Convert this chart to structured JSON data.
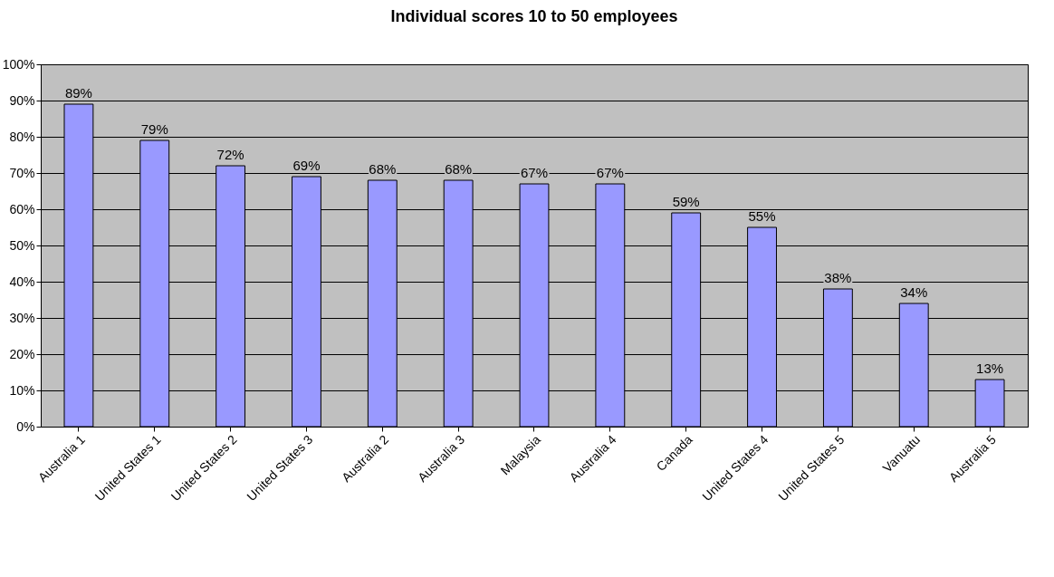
{
  "chart_data": {
    "type": "bar",
    "title": "Individual scores 10 to 50 employees",
    "categories": [
      "Australia 1",
      "United States 1",
      "United States 2",
      "United States 3",
      "Australia 2",
      "Australia 3",
      "Malaysia",
      "Australia 4",
      "Canada",
      "United States 4",
      "United States 5",
      "Vanuatu",
      "Australia 5"
    ],
    "values": [
      89,
      79,
      72,
      69,
      68,
      68,
      67,
      67,
      59,
      55,
      38,
      34,
      13
    ],
    "value_labels": [
      "89%",
      "79%",
      "72%",
      "69%",
      "68%",
      "68%",
      "67%",
      "67%",
      "59%",
      "55%",
      "38%",
      "34%",
      "13%"
    ],
    "color": "#9999ff",
    "ylim": [
      0,
      100
    ],
    "yticks": [
      {
        "value": 0,
        "label": "0%"
      },
      {
        "value": 10,
        "label": "10%"
      },
      {
        "value": 20,
        "label": "20%"
      },
      {
        "value": 30,
        "label": "30%"
      },
      {
        "value": 40,
        "label": "40%"
      },
      {
        "value": 50,
        "label": "50%"
      },
      {
        "value": 60,
        "label": "60%"
      },
      {
        "value": 70,
        "label": "70%"
      },
      {
        "value": 80,
        "label": "80%"
      },
      {
        "value": 90,
        "label": "90%"
      },
      {
        "value": 100,
        "label": "100%"
      }
    ],
    "grid": "y"
  }
}
